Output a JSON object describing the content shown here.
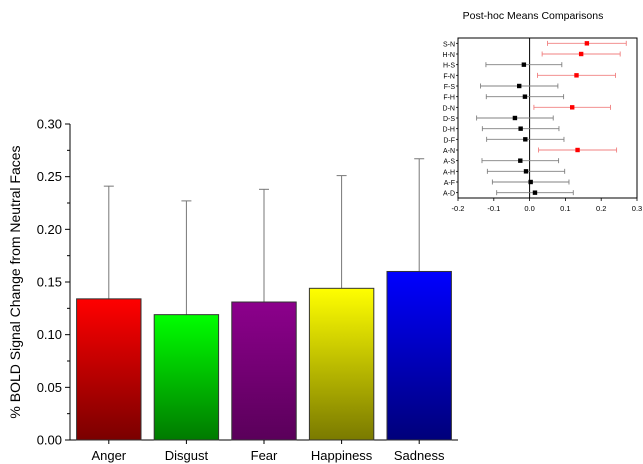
{
  "chart_data": [
    {
      "type": "bar",
      "title": "",
      "xlabel": "",
      "ylabel": "% BOLD Signal Change from Neutral Faces",
      "ylim": [
        0,
        0.3
      ],
      "yticks": [
        "0.00",
        "0.05",
        "0.10",
        "0.15",
        "0.20",
        "0.25",
        "0.30"
      ],
      "categories": [
        "Anger",
        "Disgust",
        "Fear",
        "Happiness",
        "Sadness"
      ],
      "values": [
        0.134,
        0.119,
        0.131,
        0.144,
        0.16
      ],
      "error_upper": [
        0.241,
        0.227,
        0.238,
        0.251,
        0.267
      ],
      "bar_gradients": [
        {
          "top": "#ff0000",
          "bottom": "#7a0000"
        },
        {
          "top": "#00ff00",
          "bottom": "#007a00"
        },
        {
          "top": "#8c008c",
          "bottom": "#5a005a"
        },
        {
          "top": "#ffff00",
          "bottom": "#7a7a00"
        },
        {
          "top": "#0000ff",
          "bottom": "#00007a"
        }
      ],
      "grid": false
    },
    {
      "type": "scatter",
      "title": "Post-hoc Means Comparisons",
      "xlabel": "",
      "ylabel": "",
      "xlim": [
        -0.2,
        0.3
      ],
      "xticks": [
        "-0.2",
        "-0.1",
        "0.0",
        "0.1",
        "0.2",
        "0.3"
      ],
      "categories": [
        "S-N",
        "H-N",
        "H-S",
        "F-N",
        "F-S",
        "F-H",
        "D-N",
        "D-S",
        "D-H",
        "D-F",
        "A-N",
        "A-S",
        "A-H",
        "A-F",
        "A-D"
      ],
      "means": [
        0.16,
        0.144,
        -0.016,
        0.131,
        -0.029,
        -0.013,
        0.119,
        -0.041,
        -0.025,
        -0.012,
        0.134,
        -0.026,
        -0.01,
        0.003,
        0.015
      ],
      "ci_low": [
        0.05,
        0.035,
        -0.122,
        0.022,
        -0.137,
        -0.121,
        0.012,
        -0.148,
        -0.132,
        -0.12,
        0.025,
        -0.133,
        -0.118,
        -0.104,
        -0.092
      ],
      "ci_high": [
        0.27,
        0.253,
        0.09,
        0.24,
        0.079,
        0.095,
        0.226,
        0.066,
        0.082,
        0.096,
        0.243,
        0.081,
        0.098,
        0.11,
        0.122
      ],
      "significant": [
        true,
        true,
        false,
        true,
        false,
        false,
        true,
        false,
        false,
        false,
        true,
        false,
        false,
        false,
        false
      ],
      "colors": {
        "significant": "#ff0000",
        "significant_bar": "#f08080",
        "normal": "#000000",
        "normal_bar": "#808080"
      },
      "grid": false
    }
  ]
}
